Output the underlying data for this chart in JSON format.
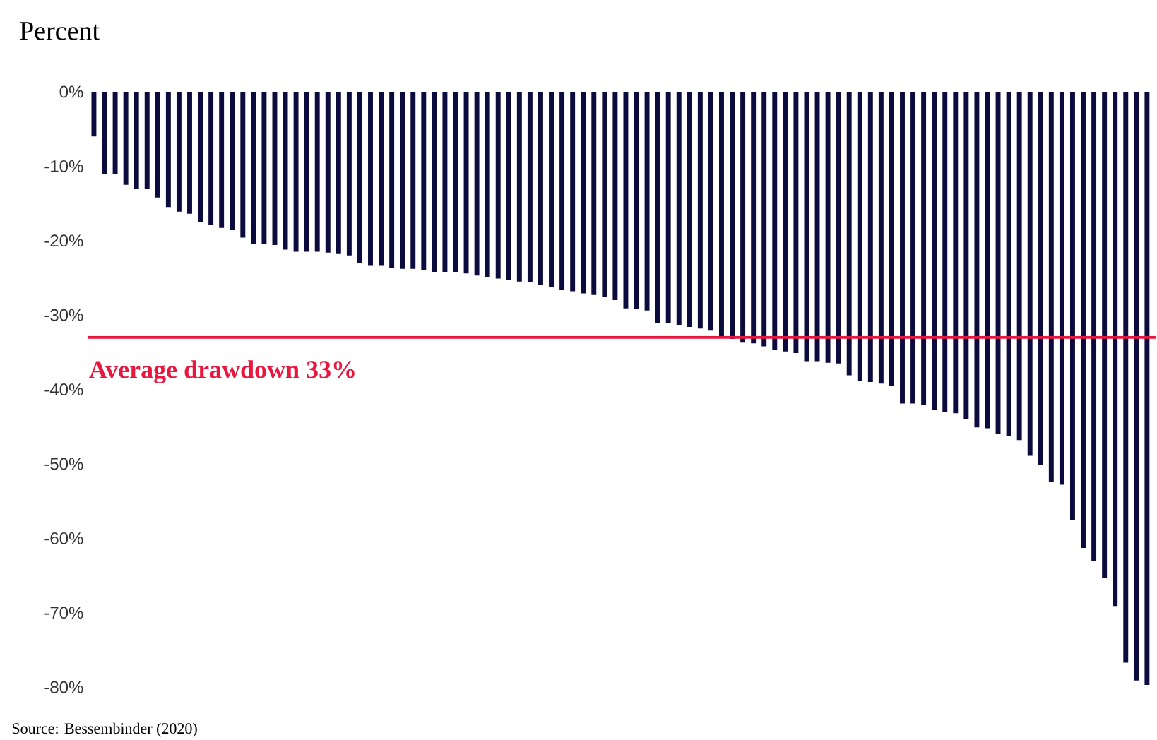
{
  "chart_data": {
    "type": "bar",
    "title": "Percent",
    "categories": [
      null,
      null,
      null,
      null,
      null,
      null,
      null,
      null,
      null,
      null,
      null,
      null,
      null,
      null,
      null,
      null,
      null,
      null,
      null,
      null,
      null,
      null,
      null,
      null,
      null,
      null,
      null,
      null,
      null,
      null,
      null,
      null,
      null,
      null,
      null,
      null,
      null,
      null,
      null,
      null,
      null,
      null,
      null,
      null,
      null,
      null,
      null,
      null,
      null,
      null,
      null,
      null,
      null,
      null,
      null,
      null,
      null,
      null,
      null,
      null,
      null,
      null,
      null,
      null,
      null,
      null,
      null,
      null,
      null,
      null,
      null,
      null,
      null,
      null,
      null,
      null,
      null,
      null,
      null,
      null,
      null,
      null,
      null,
      null,
      null,
      null,
      null,
      null,
      null,
      null,
      null,
      null,
      null,
      null,
      null,
      null,
      null,
      null,
      null,
      null
    ],
    "values": [
      -6.0,
      -11.1,
      -11.1,
      -12.5,
      -13.0,
      -13.1,
      -14.2,
      -15.5,
      -16.1,
      -16.4,
      -17.5,
      -17.9,
      -18.3,
      -18.6,
      -19.6,
      -20.4,
      -20.5,
      -20.6,
      -21.2,
      -21.5,
      -21.5,
      -21.5,
      -21.6,
      -21.8,
      -22.0,
      -23.0,
      -23.4,
      -23.4,
      -23.7,
      -23.8,
      -23.8,
      -24.0,
      -24.2,
      -24.2,
      -24.2,
      -24.4,
      -24.7,
      -24.9,
      -25.1,
      -25.3,
      -25.5,
      -25.6,
      -25.9,
      -26.2,
      -26.6,
      -26.8,
      -27.1,
      -27.3,
      -27.6,
      -28.0,
      -29.1,
      -29.2,
      -29.4,
      -31.1,
      -31.1,
      -31.3,
      -31.6,
      -31.8,
      -32.1,
      -32.9,
      -33.2,
      -33.7,
      -33.8,
      -34.2,
      -34.7,
      -34.9,
      -35.1,
      -36.2,
      -36.2,
      -36.4,
      -36.5,
      -38.1,
      -38.8,
      -39.0,
      -39.2,
      -39.5,
      -41.9,
      -41.9,
      -42.1,
      -42.7,
      -43.0,
      -43.2,
      -44.0,
      -45.1,
      -45.2,
      -46.0,
      -46.3,
      -46.8,
      -48.9,
      -50.2,
      -52.4,
      -52.8,
      -57.6,
      -61.3,
      -63.1,
      -65.3,
      -69.1,
      -76.7,
      -79.1,
      -79.7
    ],
    "color": "#0b0b3d",
    "ylim": [
      -80,
      0
    ],
    "yticks": [
      {
        "value": 0,
        "label": "0%"
      },
      {
        "value": -10,
        "label": "-10%"
      },
      {
        "value": -20,
        "label": "-20%"
      },
      {
        "value": -30,
        "label": "-30%"
      },
      {
        "value": -40,
        "label": "-40%"
      },
      {
        "value": -50,
        "label": "-50%"
      },
      {
        "value": -60,
        "label": "-60%"
      },
      {
        "value": -70,
        "label": "-70%"
      },
      {
        "value": -80,
        "label": "-80%"
      }
    ],
    "tick_labels": "y",
    "ref_lines": [
      {
        "axis": "y",
        "value": -33,
        "label": "Average drawdown 33%",
        "color": "#e8173f"
      }
    ],
    "annotations": [
      "Source: Bessembinder (2020)"
    ]
  }
}
